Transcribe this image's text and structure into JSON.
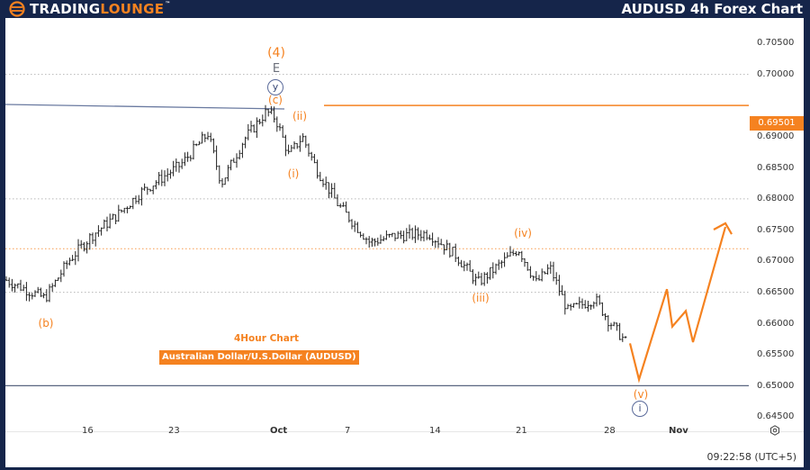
{
  "header": {
    "logo": {
      "text_white": "TRADING",
      "text_orange": "LOUNGE",
      "trademark": "™",
      "icon": "trading-lounge-logo-icon"
    },
    "title": "AUDUSD 4h Forex Chart"
  },
  "chart_labels": {
    "timeframe": "4Hour Chart",
    "instrument": "Australian Dollar/U.S.Dollar (AUDUSD)"
  },
  "price_axis": {
    "ticks": [
      "0.70500",
      "0.70000",
      "0.69000",
      "0.68500",
      "0.68000",
      "0.67500",
      "0.67000",
      "0.66500",
      "0.66000",
      "0.65500",
      "0.65000",
      "0.64500"
    ],
    "current_price_tag": "0.69501"
  },
  "date_axis": {
    "ticks": [
      "16",
      "23",
      "Oct",
      "7",
      "14",
      "21",
      "28",
      "Nov"
    ]
  },
  "footer": {
    "time": "09:22:58 (UTC+5)",
    "settings_icon": "gear-icon"
  },
  "wave_labels": {
    "w4": "(4)",
    "e": "E",
    "y_circle": "y",
    "c": "(c)",
    "ii": "(ii)",
    "i": "(i)",
    "iii": "(iii)",
    "iv": "(iv)",
    "v": "(v)",
    "i_circle": "i",
    "b": "(b)"
  },
  "colors": {
    "brand_navy": "#15254a",
    "accent_orange": "#f58220",
    "bar": "#222222",
    "trendline": "#6a7aa0"
  },
  "chart_data": {
    "type": "ohlc",
    "title": "AUDUSD 4h Forex Chart",
    "subtitle": "Australian Dollar/U.S.Dollar (AUDUSD) — 4Hour Chart",
    "xlabel": "",
    "ylabel": "",
    "ylim": [
      0.6435,
      0.707
    ],
    "x_ticks": [
      "16",
      "23",
      "Oct",
      "7",
      "14",
      "21",
      "28",
      "Nov"
    ],
    "y_ticks": [
      0.705,
      0.7,
      0.695,
      0.69,
      0.685,
      0.68,
      0.675,
      0.67,
      0.665,
      0.66,
      0.655,
      0.65,
      0.645
    ],
    "grid": "dotted horizontal at selected levels",
    "approx_close_path": [
      {
        "date": "Sep 10",
        "price": 0.667
      },
      {
        "date": "Sep 12",
        "price": 0.6655
      },
      {
        "date": "Sep 13",
        "price": 0.664
      },
      {
        "date": "Sep 16",
        "price": 0.67
      },
      {
        "date": "Sep 18",
        "price": 0.674
      },
      {
        "date": "Sep 20",
        "price": 0.6775
      },
      {
        "date": "Sep 23",
        "price": 0.681
      },
      {
        "date": "Sep 25",
        "price": 0.6855
      },
      {
        "date": "Sep 26",
        "price": 0.6905
      },
      {
        "date": "Sep 27",
        "price": 0.6825
      },
      {
        "date": "Sep 29",
        "price": 0.6895
      },
      {
        "date": "Sep 30",
        "price": 0.694
      },
      {
        "date": "Oct 1",
        "price": 0.693
      },
      {
        "date": "Oct 2",
        "price": 0.687
      },
      {
        "date": "Oct 3",
        "price": 0.69
      },
      {
        "date": "Oct 4",
        "price": 0.685
      },
      {
        "date": "Oct 7",
        "price": 0.679
      },
      {
        "date": "Oct 9",
        "price": 0.673
      },
      {
        "date": "Oct 11",
        "price": 0.674
      },
      {
        "date": "Oct 14",
        "price": 0.6745
      },
      {
        "date": "Oct 16",
        "price": 0.671
      },
      {
        "date": "Oct 18",
        "price": 0.6665
      },
      {
        "date": "Oct 21",
        "price": 0.672
      },
      {
        "date": "Oct 23",
        "price": 0.6665
      },
      {
        "date": "Oct 24",
        "price": 0.669
      },
      {
        "date": "Oct 25",
        "price": 0.662
      },
      {
        "date": "Oct 28",
        "price": 0.664
      },
      {
        "date": "Oct 29",
        "price": 0.6605
      },
      {
        "date": "Oct 30",
        "price": 0.6565
      }
    ],
    "horizontal_levels": [
      {
        "price": 0.69501,
        "style": "solid",
        "color": "#f58220",
        "label": "0.69501"
      },
      {
        "price": 0.672,
        "style": "dotted",
        "color": "#f58220"
      },
      {
        "price": 0.65,
        "style": "solid",
        "color": "#5a6580"
      }
    ],
    "trendline": {
      "from": {
        "x": "Sep 10",
        "price": 0.6955
      },
      "to": {
        "x": "Oct 1",
        "price": 0.695
      },
      "color": "#6a7aa0"
    },
    "projection": {
      "color": "#f58220",
      "points": [
        0.6568,
        0.651,
        0.6655,
        0.6595,
        0.662,
        0.657,
        0.6755
      ],
      "arrow_end": true
    },
    "annotations": [
      {
        "text": "(4)",
        "price": 0.7035
      },
      {
        "text": "E",
        "price": 0.701
      },
      {
        "text": "y (circled)",
        "price": 0.698
      },
      {
        "text": "(c)",
        "price": 0.6962
      },
      {
        "text": "(ii)",
        "price": 0.693
      },
      {
        "text": "(i)",
        "price": 0.684
      },
      {
        "text": "(iii)",
        "price": 0.664
      },
      {
        "text": "(iv)",
        "price": 0.6725
      },
      {
        "text": "(v)",
        "price": 0.649
      },
      {
        "text": "i (circled)",
        "price": 0.6465
      },
      {
        "text": "(b)",
        "price": 0.66
      }
    ]
  }
}
